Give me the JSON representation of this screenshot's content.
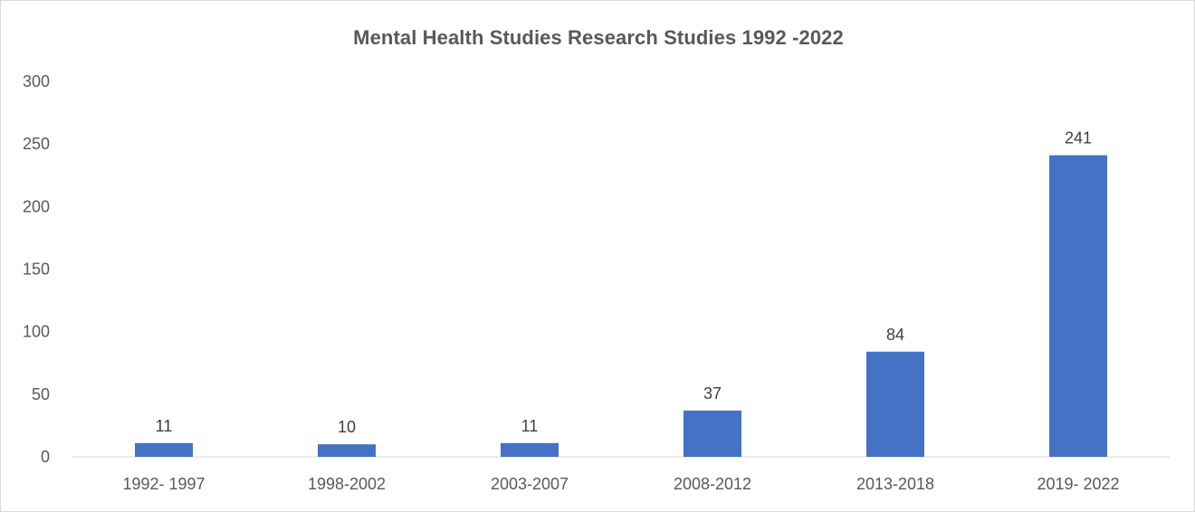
{
  "chart_data": {
    "type": "bar",
    "title": "Mental Health Studies Research Studies 1992 -2022",
    "xlabel": "",
    "ylabel": "",
    "categories": [
      "1992- 1997",
      "1998-2002",
      "2003-2007",
      "2008-2012",
      "2013-2018",
      "2019- 2022"
    ],
    "values": [
      11,
      10,
      11,
      37,
      84,
      241
    ],
    "ylim": [
      0,
      300
    ],
    "yticks": [
      0,
      50,
      100,
      150,
      200,
      250,
      300
    ],
    "grid": false,
    "legend": "none",
    "bar_color": "#4472C4"
  }
}
